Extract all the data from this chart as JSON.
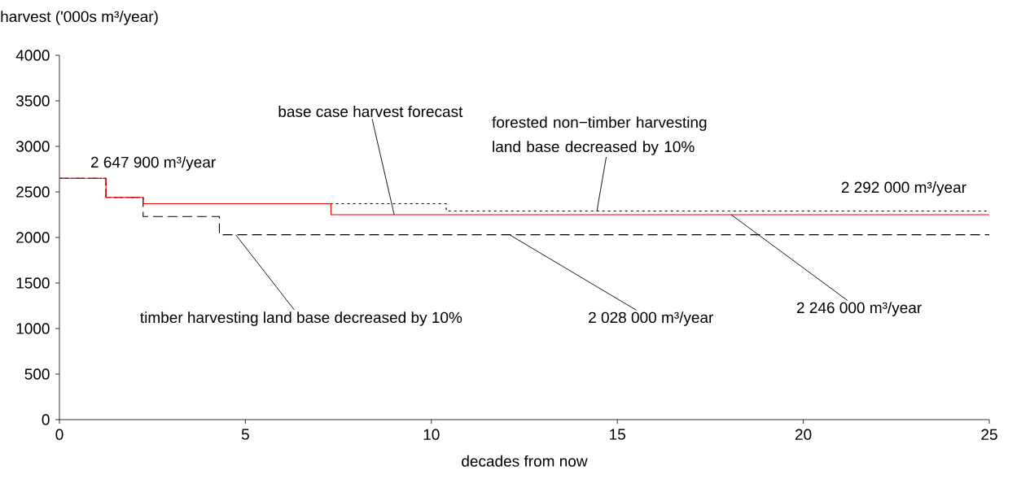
{
  "chart_data": {
    "type": "step",
    "xlabel": "decades from now",
    "ylabel": "harvest ('000s m³/year)",
    "xlim": [
      0,
      25
    ],
    "xticks": [
      0,
      5,
      10,
      15,
      20,
      25
    ],
    "ylim": [
      0,
      4000
    ],
    "yticks": [
      0,
      500,
      1000,
      1500,
      2000,
      2500,
      3000,
      3500,
      4000
    ],
    "grid": false,
    "marker": "none",
    "series": [
      {
        "color": "#000000",
        "line_style": "dotted",
        "x": [
          0,
          1.25,
          2.25,
          10.4,
          25
        ],
        "values": [
          2650,
          2440,
          2370,
          2290,
          2290
        ]
      },
      {
        "color": "#000000",
        "line_style": "dashed",
        "x": [
          0,
          1.25,
          2.25,
          4.3,
          25
        ],
        "values": [
          2650,
          2440,
          2230,
          2030,
          2030
        ]
      },
      {
        "color": "#ff0000",
        "line_style": "solid",
        "x": [
          0,
          1.25,
          2.25,
          7.3,
          25
        ],
        "values": [
          2650,
          2440,
          2370,
          2250,
          2250
        ]
      }
    ],
    "annotations": [
      {
        "text": "base case harvest forecast",
        "x": 9,
        "y": 2250
      },
      {
        "text": "forested non−timber harvesting land base decreased by 10%",
        "x": 14.45,
        "y": 2290
      },
      "2 292 000 m³/year",
      "2 647 900 m³/year",
      {
        "text": "timber harvesting land base decreased by 10%",
        "x": 4.74,
        "y": 2030
      },
      {
        "text": "2 028 000 m³/year",
        "x": 12.1,
        "y": 2030
      },
      {
        "text": "2 246 000 m³/year",
        "x": 18.06,
        "y": 2250
      }
    ]
  }
}
